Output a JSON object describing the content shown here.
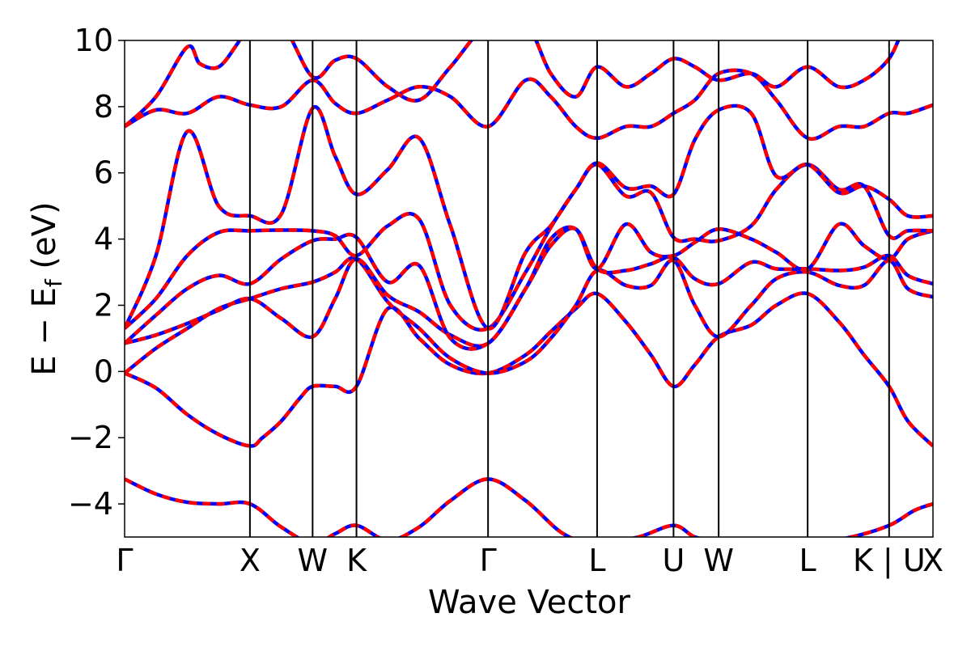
{
  "chart_data": {
    "type": "line",
    "title": "",
    "xlabel": "Wave Vector",
    "ylabel": "E − E",
    "ylabel_subscript": "f",
    "ylabel_unit": " (eV)",
    "ylim": [
      -5,
      10
    ],
    "xlim": [
      0,
      6.45
    ],
    "grid": false,
    "legend": "none",
    "y_ticks": [
      -4,
      -2,
      0,
      2,
      4,
      6,
      8,
      10
    ],
    "y_tick_labels": [
      "−4",
      "−2",
      "0",
      "2",
      "4",
      "6",
      "8",
      "10"
    ],
    "k_points": [
      {
        "label": "Γ",
        "x": 0.0
      },
      {
        "label": "X",
        "x": 1.0
      },
      {
        "label": "W",
        "x": 1.5
      },
      {
        "label": "K",
        "x": 1.85
      },
      {
        "label": "Γ",
        "x": 2.9
      },
      {
        "label": "L",
        "x": 3.77
      },
      {
        "label": "U",
        "x": 4.38
      },
      {
        "label": "W",
        "x": 4.74
      },
      {
        "label": "L",
        "x": 5.45
      },
      {
        "label": "K | U",
        "x": 6.1
      },
      {
        "label": "X",
        "x": 6.45
      }
    ],
    "colors": {
      "reference": "#0000ff",
      "overlay": "#ff0000"
    },
    "bands": [
      {
        "name": "",
        "x": [
          0,
          0.25,
          0.5,
          0.75,
          1.0,
          1.25,
          1.5,
          1.68,
          1.85,
          2.1,
          2.35,
          2.6,
          2.9,
          3.2,
          3.5,
          3.77,
          4.1,
          4.38,
          4.55,
          4.74,
          5.1,
          5.45,
          5.8,
          6.1,
          6.3,
          6.45
        ],
        "y": [
          -3.25,
          -3.7,
          -3.95,
          -4.0,
          -4.0,
          -4.7,
          -5.2,
          -4.9,
          -4.65,
          -5.1,
          -4.7,
          -3.9,
          -3.25,
          -3.9,
          -4.9,
          -5.2,
          -5.0,
          -4.65,
          -5.0,
          -5.1,
          -5.1,
          -5.2,
          -5.0,
          -4.65,
          -4.2,
          -4.0
        ]
      },
      {
        "name": "",
        "x": [
          0,
          0.25,
          0.5,
          0.75,
          1.0,
          1.1,
          1.25,
          1.4,
          1.5,
          1.68,
          1.85,
          2.1,
          2.35,
          2.6,
          2.9,
          3.2,
          3.4,
          3.6,
          3.77,
          4.0,
          4.2,
          4.38,
          4.55,
          4.74,
          5.0,
          5.2,
          5.45,
          5.7,
          5.9,
          6.1,
          6.25,
          6.45
        ],
        "y": [
          -0.05,
          -0.5,
          -1.3,
          -1.9,
          -2.25,
          -2.0,
          -1.5,
          -0.8,
          -0.45,
          -0.45,
          -0.45,
          1.9,
          1.0,
          0.2,
          -0.05,
          0.5,
          1.2,
          1.9,
          2.35,
          1.5,
          0.5,
          -0.45,
          0.2,
          1.05,
          1.4,
          2.0,
          2.35,
          1.5,
          0.5,
          -0.45,
          -1.5,
          -2.25
        ]
      },
      {
        "name": "",
        "x": [
          0,
          0.25,
          0.5,
          0.75,
          1.0,
          1.25,
          1.5,
          1.68,
          1.85,
          2.1,
          2.35,
          2.6,
          2.9,
          3.2,
          3.4,
          3.6,
          3.77,
          4.0,
          4.2,
          4.38,
          4.55,
          4.74,
          5.0,
          5.2,
          5.45,
          5.7,
          5.9,
          6.1,
          6.25,
          6.45
        ],
        "y": [
          -0.05,
          0.7,
          1.3,
          1.9,
          2.2,
          2.5,
          2.7,
          3.0,
          3.4,
          2.1,
          1.3,
          0.4,
          -0.05,
          0.3,
          1.0,
          2.0,
          3.05,
          2.6,
          2.6,
          3.35,
          2.0,
          1.05,
          2.0,
          2.8,
          3.0,
          2.6,
          2.6,
          3.35,
          2.5,
          2.25
        ]
      },
      {
        "name": "",
        "x": [
          0,
          0.25,
          0.5,
          0.75,
          1.0,
          1.25,
          1.5,
          1.68,
          1.85,
          2.1,
          2.35,
          2.6,
          2.9,
          3.2,
          3.4,
          3.6,
          3.77,
          4.0,
          4.2,
          4.38,
          4.55,
          4.74,
          5.0,
          5.2,
          5.45,
          5.7,
          5.9,
          6.1,
          6.25,
          6.45
        ],
        "y": [
          0.85,
          1.1,
          1.45,
          1.85,
          2.2,
          1.6,
          1.05,
          2.2,
          3.4,
          2.3,
          1.8,
          1.1,
          0.85,
          2.5,
          3.8,
          4.3,
          3.1,
          3.05,
          3.25,
          3.45,
          2.8,
          2.65,
          3.3,
          3.1,
          3.1,
          3.05,
          3.15,
          3.5,
          2.9,
          2.65
        ]
      },
      {
        "name": "",
        "x": [
          0,
          0.25,
          0.5,
          0.75,
          1.0,
          1.25,
          1.5,
          1.68,
          1.85,
          2.1,
          2.35,
          2.6,
          2.9,
          3.2,
          3.4,
          3.6,
          3.77,
          4.0,
          4.2,
          4.38,
          4.55,
          4.74,
          5.0,
          5.2,
          5.45,
          5.7,
          5.9,
          6.1,
          6.25,
          6.45
        ],
        "y": [
          0.85,
          1.7,
          2.5,
          2.9,
          2.65,
          3.4,
          3.95,
          4.0,
          4.05,
          2.7,
          3.2,
          1.0,
          0.85,
          2.5,
          4.0,
          4.3,
          3.1,
          4.45,
          3.6,
          3.5,
          3.9,
          4.3,
          4.0,
          3.6,
          3.1,
          4.45,
          3.8,
          3.4,
          4.0,
          4.25
        ]
      },
      {
        "name": "",
        "x": [
          0,
          0.25,
          0.5,
          0.75,
          1.0,
          1.25,
          1.5,
          1.68,
          1.85,
          2.1,
          2.35,
          2.6,
          2.9,
          3.2,
          3.4,
          3.6,
          3.77,
          4.0,
          4.2,
          4.38,
          4.55,
          4.74,
          5.0,
          5.2,
          5.45,
          5.7,
          5.9,
          6.1,
          6.25,
          6.45
        ],
        "y": [
          1.3,
          2.2,
          3.5,
          4.2,
          4.25,
          4.27,
          4.25,
          4.1,
          3.5,
          4.4,
          4.6,
          2.0,
          1.3,
          3.0,
          4.35,
          5.5,
          6.25,
          5.3,
          5.4,
          4.05,
          4.0,
          3.95,
          4.4,
          5.5,
          6.25,
          5.5,
          5.6,
          4.1,
          4.25,
          4.25
        ]
      },
      {
        "name": "",
        "x": [
          0,
          0.25,
          0.5,
          0.75,
          1.0,
          1.25,
          1.5,
          1.68,
          1.85,
          2.1,
          2.35,
          2.6,
          2.9,
          3.2,
          3.4,
          3.6,
          3.77,
          4.0,
          4.2,
          4.38,
          4.55,
          4.74,
          5.0,
          5.2,
          5.45,
          5.7,
          5.9,
          6.1,
          6.25,
          6.45
        ],
        "y": [
          1.3,
          3.5,
          7.25,
          5.0,
          4.7,
          4.75,
          7.95,
          6.5,
          5.35,
          6.1,
          7.05,
          4.4,
          1.3,
          3.6,
          4.4,
          5.5,
          6.3,
          5.55,
          5.6,
          5.35,
          7.0,
          7.9,
          7.8,
          5.9,
          6.25,
          5.4,
          5.6,
          5.2,
          4.7,
          4.7
        ]
      },
      {
        "name": "",
        "x": [
          0,
          0.25,
          0.5,
          0.75,
          1.0,
          1.25,
          1.5,
          1.68,
          1.85,
          2.1,
          2.35,
          2.6,
          2.9,
          3.2,
          3.4,
          3.6,
          3.77,
          4.0,
          4.2,
          4.38,
          4.55,
          4.74,
          5.0,
          5.2,
          5.45,
          5.7,
          5.9,
          6.1,
          6.25,
          6.45
        ],
        "y": [
          7.4,
          7.9,
          7.8,
          8.3,
          8.05,
          8.0,
          8.8,
          8.1,
          7.8,
          8.2,
          8.6,
          8.3,
          7.4,
          8.8,
          8.3,
          7.4,
          7.05,
          7.4,
          7.4,
          7.8,
          8.2,
          9.0,
          9.0,
          8.2,
          7.05,
          7.4,
          7.4,
          7.8,
          7.8,
          8.05
        ]
      },
      {
        "name": "",
        "x": [
          0,
          0.25,
          0.5,
          0.6,
          0.75,
          0.9,
          1.0,
          1.25,
          1.5,
          1.68,
          1.85,
          2.1,
          2.35,
          2.6,
          2.9,
          3.2,
          3.4,
          3.6,
          3.77,
          4.0,
          4.2,
          4.38,
          4.55,
          4.74,
          5.0,
          5.2,
          5.45,
          5.7,
          5.9,
          6.1,
          6.25,
          6.45
        ],
        "y": [
          7.4,
          8.3,
          9.8,
          9.3,
          9.2,
          9.9,
          10.5,
          10.5,
          8.9,
          9.4,
          9.45,
          8.6,
          8.2,
          9.2,
          10.5,
          10.5,
          9.0,
          8.3,
          9.2,
          8.6,
          9.0,
          9.45,
          9.2,
          8.8,
          9.0,
          8.6,
          9.2,
          8.6,
          8.8,
          9.45,
          10.5,
          10.5
        ]
      }
    ]
  }
}
